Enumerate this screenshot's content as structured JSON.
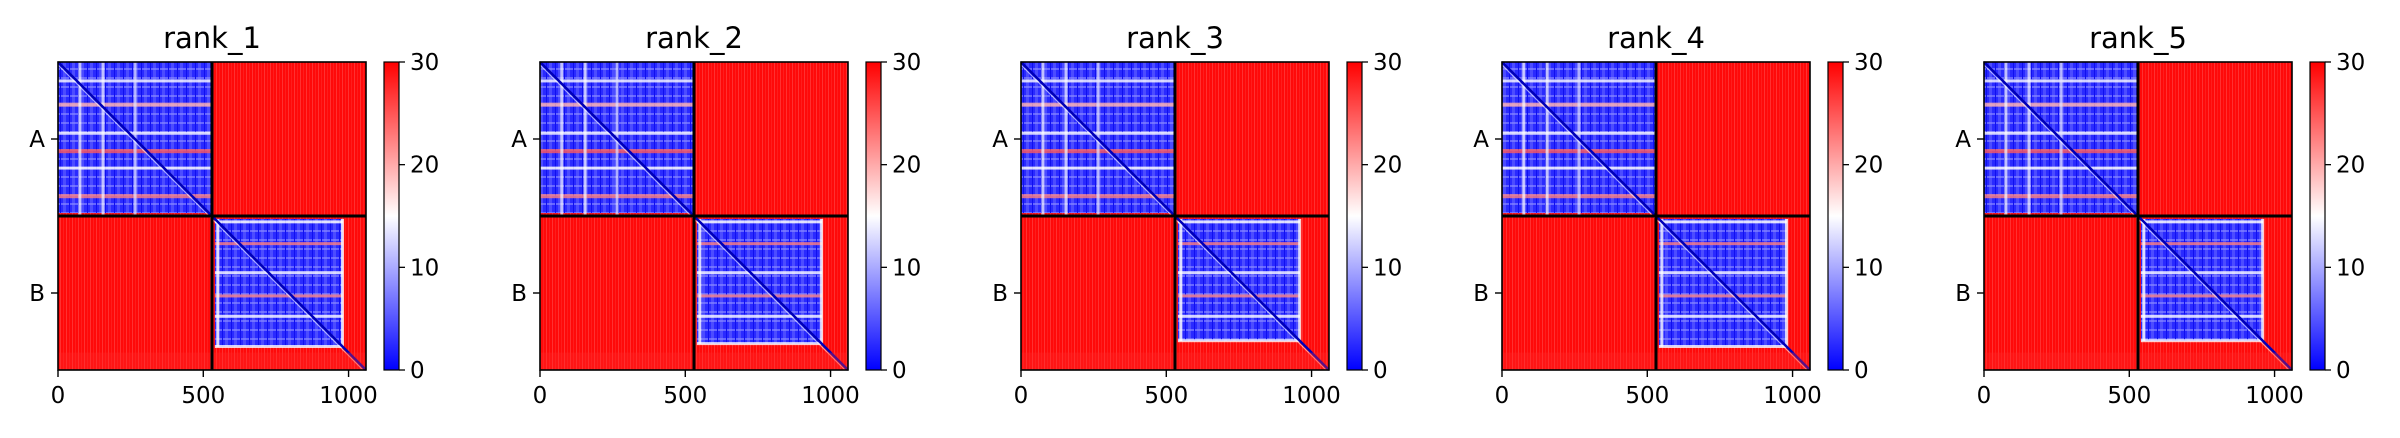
{
  "colors": {
    "low": "#0000ff",
    "mid": "#ffffff",
    "high": "#ff0000",
    "block_line": "#000000"
  },
  "colorbar": {
    "ticks": [
      0,
      10,
      20,
      30
    ],
    "tick_labels": [
      "0",
      "10",
      "20",
      "30"
    ],
    "vmin": 0,
    "vmax": 30
  },
  "chart_data": [
    {
      "type": "heatmap",
      "title": "rank_1",
      "chains": [
        "A",
        "B"
      ],
      "chain_boundary": 530,
      "intra_chain_end_B": 980,
      "xlim": [
        0,
        1060
      ],
      "ylim": [
        0,
        1060
      ],
      "xticks": [
        0,
        500,
        1000
      ],
      "xtick_labels": [
        "0",
        "500",
        "1000"
      ],
      "ytick_labels": [
        "A",
        "B"
      ],
      "colorbar_ticks": [
        "0",
        "10",
        "20",
        "30"
      ],
      "value_range": [
        0,
        30
      ]
    },
    {
      "type": "heatmap",
      "title": "rank_2",
      "chains": [
        "A",
        "B"
      ],
      "chain_boundary": 530,
      "intra_chain_end_B": 970,
      "xlim": [
        0,
        1060
      ],
      "ylim": [
        0,
        1060
      ],
      "xticks": [
        0,
        500,
        1000
      ],
      "xtick_labels": [
        "0",
        "500",
        "1000"
      ],
      "ytick_labels": [
        "A",
        "B"
      ],
      "colorbar_ticks": [
        "0",
        "10",
        "20",
        "30"
      ],
      "value_range": [
        0,
        30
      ]
    },
    {
      "type": "heatmap",
      "title": "rank_3",
      "chains": [
        "A",
        "B"
      ],
      "chain_boundary": 530,
      "intra_chain_end_B": 960,
      "xlim": [
        0,
        1060
      ],
      "ylim": [
        0,
        1060
      ],
      "xticks": [
        0,
        500,
        1000
      ],
      "xtick_labels": [
        "0",
        "500",
        "1000"
      ],
      "ytick_labels": [
        "A",
        "B"
      ],
      "colorbar_ticks": [
        "0",
        "10",
        "20",
        "30"
      ],
      "value_range": [
        0,
        30
      ]
    },
    {
      "type": "heatmap",
      "title": "rank_4",
      "chains": [
        "A",
        "B"
      ],
      "chain_boundary": 530,
      "intra_chain_end_B": 980,
      "xlim": [
        0,
        1060
      ],
      "ylim": [
        0,
        1060
      ],
      "xticks": [
        0,
        500,
        1000
      ],
      "xtick_labels": [
        "0",
        "500",
        "1000"
      ],
      "ytick_labels": [
        "A",
        "B"
      ],
      "colorbar_ticks": [
        "0",
        "10",
        "20",
        "30"
      ],
      "value_range": [
        0,
        30
      ]
    },
    {
      "type": "heatmap",
      "title": "rank_5",
      "chains": [
        "A",
        "B"
      ],
      "chain_boundary": 530,
      "intra_chain_end_B": 960,
      "xlim": [
        0,
        1060
      ],
      "ylim": [
        0,
        1060
      ],
      "xticks": [
        0,
        500,
        1000
      ],
      "xtick_labels": [
        "0",
        "500",
        "1000"
      ],
      "ytick_labels": [
        "A",
        "B"
      ],
      "colorbar_ticks": [
        "0",
        "10",
        "20",
        "30"
      ],
      "value_range": [
        0,
        30
      ]
    }
  ]
}
